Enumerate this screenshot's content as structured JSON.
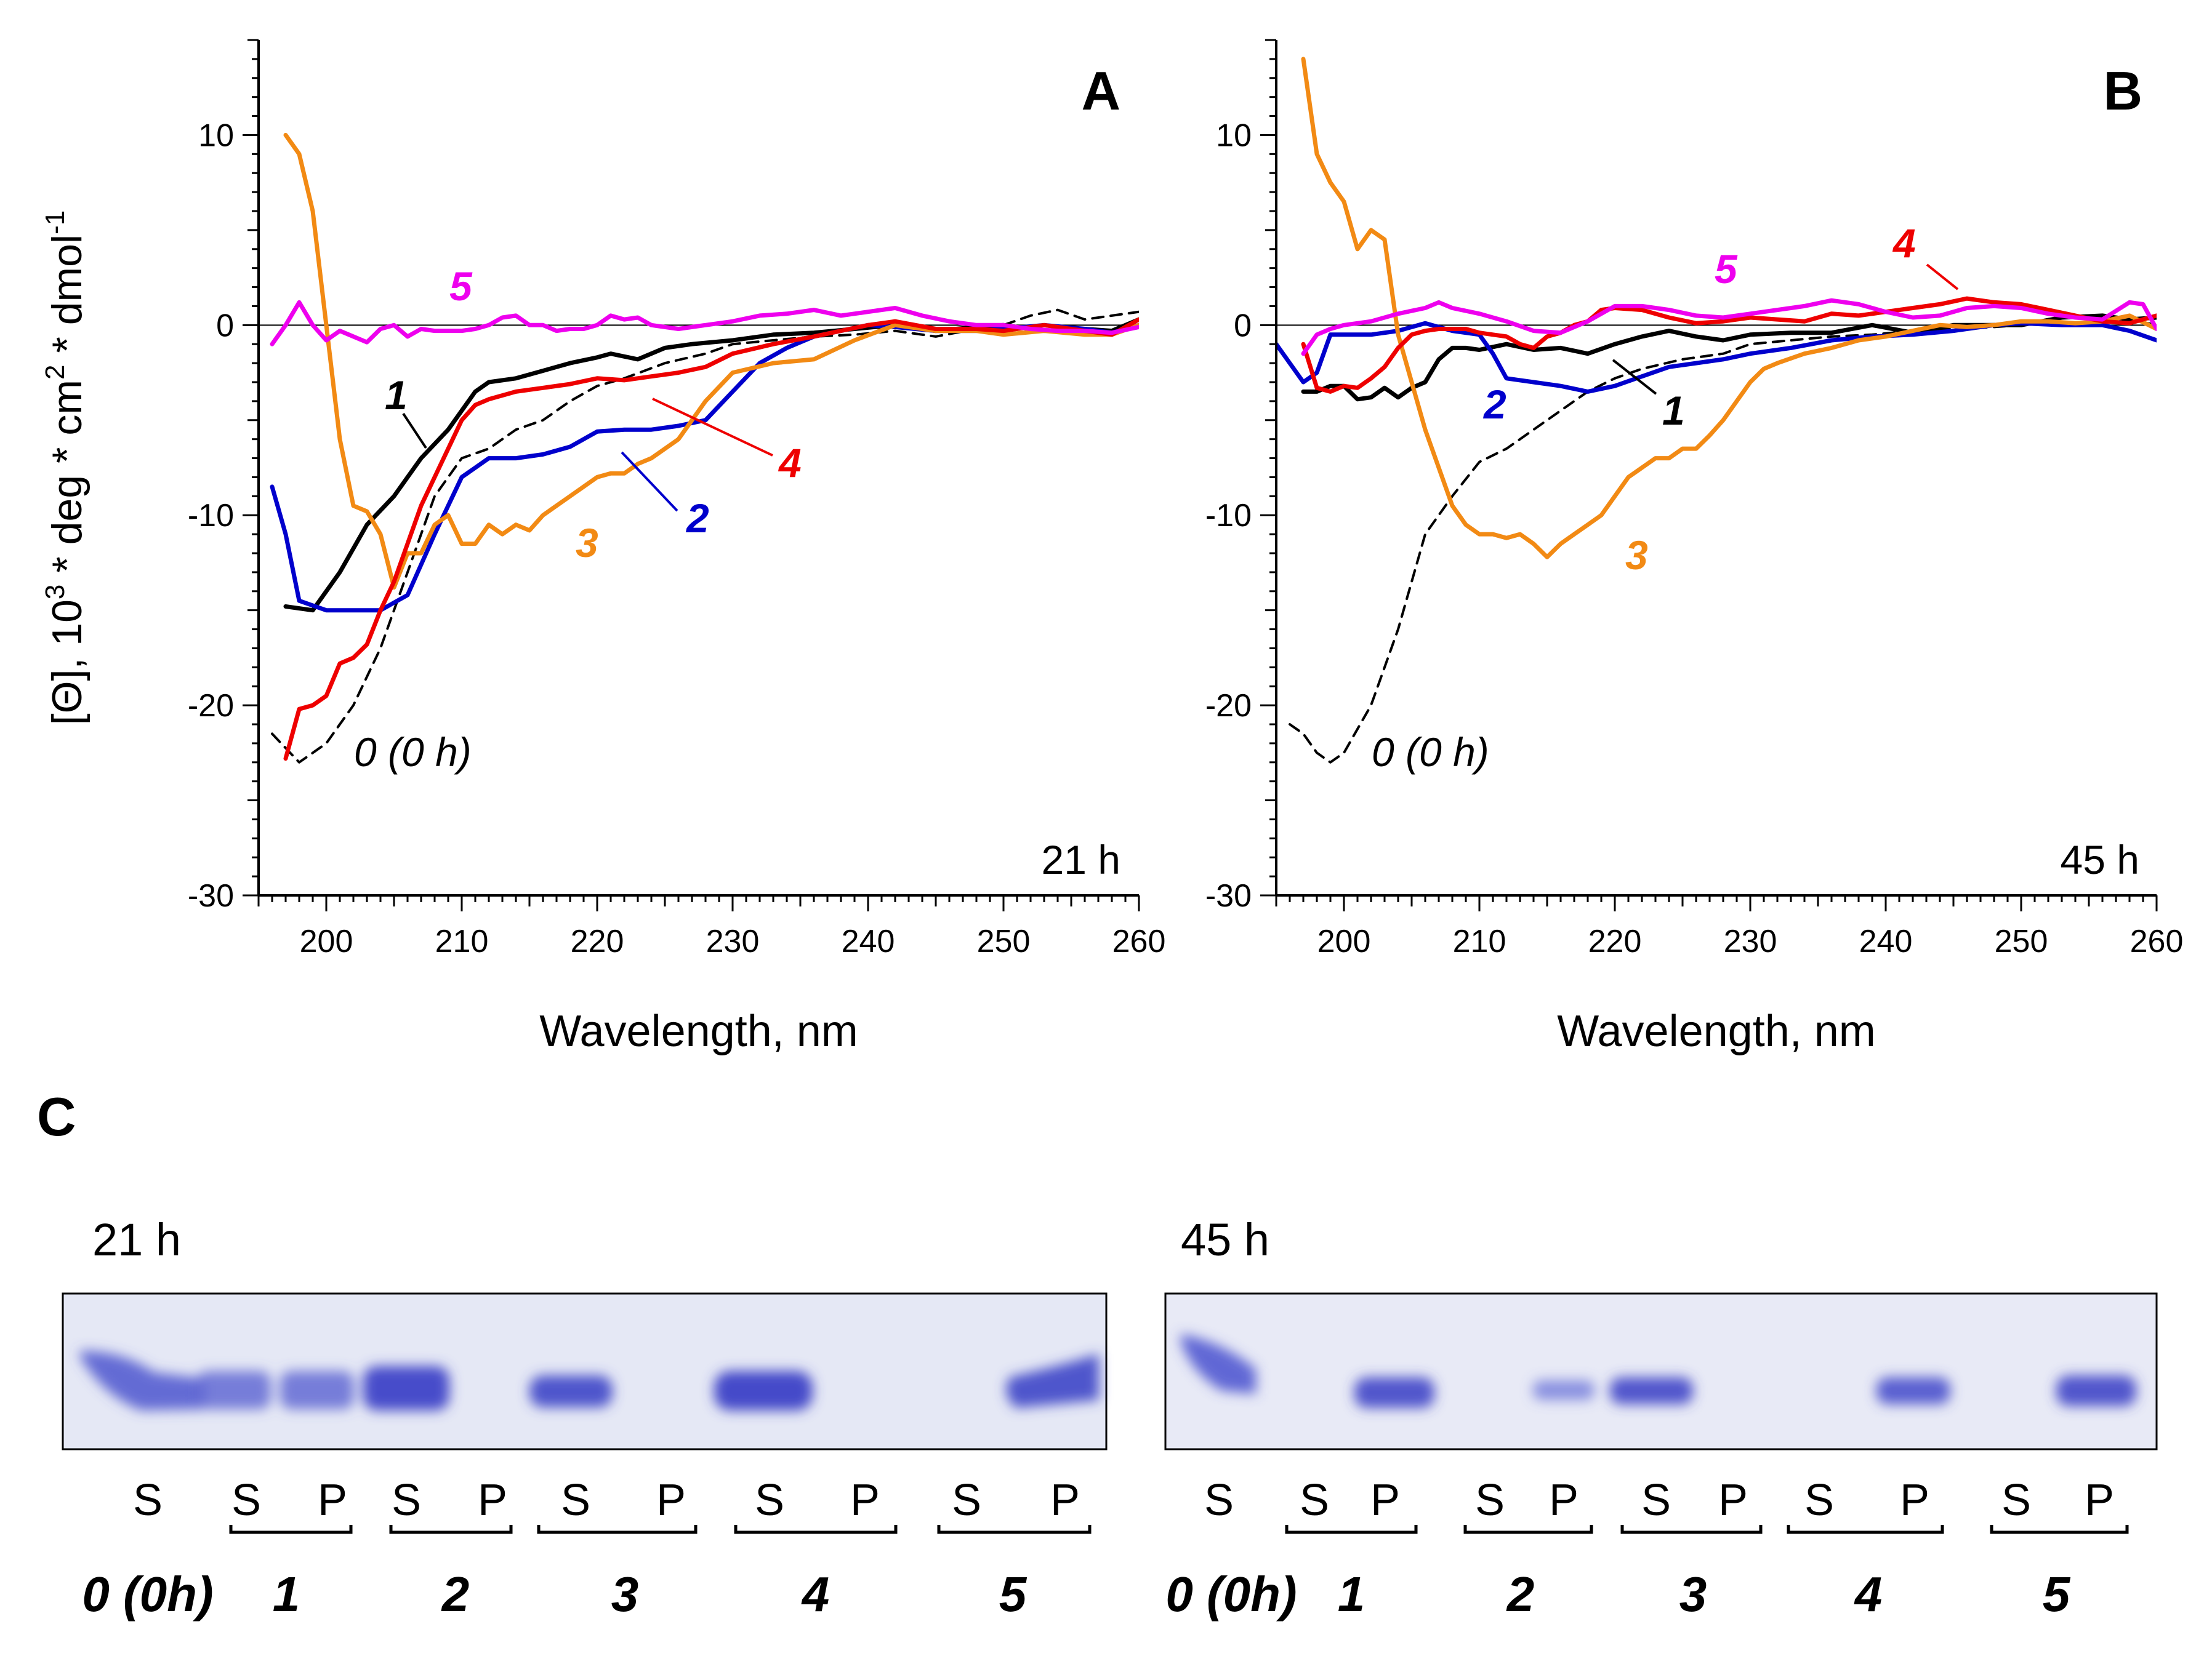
{
  "chart_data": [
    {
      "type": "line",
      "panel_letter": "A",
      "time_label": "21 h",
      "xlabel": "Wavelength, nm",
      "ylabel_parts": [
        "[",
        "Θ",
        "], 10",
        "3",
        " * deg * cm",
        "2",
        " * dmol",
        "-1"
      ],
      "xlim": [
        195,
        260
      ],
      "ylim": [
        -30,
        15
      ],
      "xticks": [
        "200",
        "210",
        "220",
        "230",
        "240",
        "250",
        "260"
      ],
      "yticks": [
        "10",
        "0",
        "-10",
        "-20",
        "-30"
      ],
      "series": [
        {
          "name": "0 (0 h)",
          "color": "#000000",
          "dashed": true,
          "x": [
            196,
            198,
            200,
            202,
            204,
            206,
            208,
            210,
            212,
            214,
            216,
            218,
            220,
            222,
            225,
            228,
            230,
            233,
            236,
            239,
            242,
            245,
            248,
            250,
            252,
            254,
            256,
            258,
            260
          ],
          "y": [
            -21.5,
            -23,
            -22,
            -20,
            -17,
            -13,
            -9,
            -7,
            -6.5,
            -5.5,
            -5,
            -4,
            -3.2,
            -2.8,
            -2,
            -1.5,
            -1,
            -0.8,
            -0.6,
            -0.5,
            -0.3,
            -0.6,
            -0.2,
            0,
            0.5,
            0.8,
            0.3,
            0.5,
            0.7
          ]
        },
        {
          "name": "1",
          "label": "1",
          "color": "#000000",
          "x": [
            197,
            199,
            201,
            203,
            205,
            207,
            209,
            211,
            212,
            214,
            216,
            218,
            220,
            221,
            223,
            225,
            227,
            230,
            233,
            236,
            239,
            242,
            245,
            248,
            250,
            253,
            256,
            258,
            260
          ],
          "y": [
            -14.8,
            -15,
            -13,
            -10.5,
            -9,
            -7,
            -5.5,
            -3.5,
            -3,
            -2.8,
            -2.4,
            -2,
            -1.7,
            -1.5,
            -1.8,
            -1.2,
            -1,
            -0.8,
            -0.5,
            -0.4,
            -0.2,
            0,
            -0.3,
            -0.1,
            0,
            -0.3,
            -0.2,
            -0.3,
            0.3
          ]
        },
        {
          "name": "2",
          "label": "2",
          "color": "#0000CC",
          "x": [
            196,
            197,
            198,
            200,
            202,
            204,
            206,
            208,
            210,
            212,
            214,
            216,
            218,
            220,
            222,
            224,
            226,
            228,
            230,
            232,
            234,
            236,
            238,
            240,
            242,
            245,
            248,
            250,
            253,
            256,
            258,
            260
          ],
          "y": [
            -8.5,
            -11,
            -14.5,
            -15,
            -15,
            -15,
            -14.2,
            -11,
            -8,
            -7,
            -7,
            -6.8,
            -6.4,
            -5.6,
            -5.5,
            -5.5,
            -5.3,
            -5,
            -3.5,
            -2,
            -1.2,
            -0.6,
            -0.3,
            0,
            -0.1,
            -0.3,
            -0.3,
            -0.2,
            0,
            -0.2,
            -0.4,
            0
          ]
        },
        {
          "name": "3",
          "label": "3",
          "color": "#F28A14",
          "x": [
            197,
            198,
            199,
            200,
            201,
            202,
            203,
            204,
            205,
            206,
            207,
            208,
            209,
            210,
            211,
            212,
            213,
            214,
            215,
            216,
            217,
            218,
            219,
            220,
            221,
            222,
            223,
            224,
            226,
            228,
            230,
            233,
            236,
            239,
            242,
            245,
            248,
            250,
            253,
            256,
            258,
            260
          ],
          "y": [
            10,
            9,
            6,
            0,
            -6,
            -9.5,
            -9.8,
            -11,
            -13.8,
            -12,
            -12,
            -10.5,
            -10,
            -11.5,
            -11.5,
            -10.5,
            -11,
            -10.5,
            -10.8,
            -10,
            -9.5,
            -9,
            -8.5,
            -8,
            -7.8,
            -7.8,
            -7.3,
            -7,
            -6,
            -4,
            -2.5,
            -2,
            -1.8,
            -0.8,
            0,
            -0.3,
            -0.3,
            -0.5,
            -0.3,
            -0.5,
            -0.5,
            0
          ]
        },
        {
          "name": "4",
          "label": "4",
          "color": "#EE0000",
          "x": [
            197,
            198,
            199,
            200,
            201,
            202,
            203,
            204,
            205,
            206,
            207,
            208,
            209,
            210,
            211,
            212,
            214,
            216,
            218,
            220,
            222,
            224,
            226,
            228,
            230,
            233,
            236,
            238,
            240,
            242,
            245,
            248,
            250,
            253,
            256,
            258,
            260
          ],
          "y": [
            -22.8,
            -20.2,
            -20,
            -19.5,
            -17.8,
            -17.5,
            -16.8,
            -15,
            -13.5,
            -11.5,
            -9.5,
            -8,
            -6.5,
            -5,
            -4.2,
            -3.9,
            -3.5,
            -3.3,
            -3.1,
            -2.8,
            -2.9,
            -2.7,
            -2.5,
            -2.2,
            -1.5,
            -1,
            -0.6,
            -0.3,
            0,
            0.2,
            -0.2,
            -0.2,
            -0.3,
            0,
            -0.3,
            -0.5,
            0.3
          ]
        },
        {
          "name": "5",
          "label": "5",
          "color": "#EE00EE",
          "x": [
            196,
            197,
            198,
            199,
            200,
            201,
            202,
            203,
            204,
            205,
            206,
            207,
            208,
            209,
            210,
            211,
            212,
            213,
            214,
            215,
            216,
            217,
            218,
            219,
            220,
            221,
            222,
            223,
            224,
            226,
            228,
            230,
            232,
            234,
            236,
            238,
            240,
            242,
            244,
            246,
            248,
            250,
            252,
            254,
            256,
            258,
            260
          ],
          "y": [
            -1,
            0,
            1.2,
            0,
            -0.8,
            -0.3,
            -0.6,
            -0.9,
            -0.2,
            0,
            -0.6,
            -0.2,
            -0.3,
            -0.3,
            -0.3,
            -0.2,
            0,
            0.4,
            0.5,
            0,
            0,
            -0.3,
            -0.2,
            -0.2,
            0,
            0.5,
            0.3,
            0.4,
            0,
            -0.2,
            0,
            0.2,
            0.5,
            0.6,
            0.8,
            0.5,
            0.7,
            0.9,
            0.5,
            0.2,
            0,
            0,
            -0.2,
            -0.3,
            -0.3,
            -0.4,
            -0.1
          ]
        }
      ]
    },
    {
      "type": "line",
      "panel_letter": "B",
      "time_label": "45 h",
      "xlabel": "Wavelength, nm",
      "xlim": [
        195,
        260
      ],
      "ylim": [
        -30,
        15
      ],
      "xticks": [
        "200",
        "210",
        "220",
        "230",
        "240",
        "250",
        "260"
      ],
      "yticks": [
        "10",
        "0",
        "-10",
        "-20",
        "-30"
      ],
      "series": [
        {
          "name": "0 (0 h)",
          "color": "#000000",
          "dashed": true,
          "x": [
            196,
            197,
            198,
            199,
            200,
            202,
            204,
            206,
            208,
            210,
            212,
            214,
            216,
            218,
            220,
            222,
            225,
            228,
            230,
            233,
            236,
            239,
            242,
            245,
            248,
            250,
            252,
            254,
            256,
            258,
            260
          ],
          "y": [
            -21,
            -21.5,
            -22.5,
            -23,
            -22.5,
            -20,
            -16,
            -11,
            -9,
            -7.2,
            -6.5,
            -5.5,
            -4.5,
            -3.5,
            -2.8,
            -2.3,
            -1.8,
            -1.5,
            -1,
            -0.8,
            -0.6,
            -0.5,
            -0.3,
            -0.2,
            -0.1,
            0,
            0.3,
            0.5,
            0.5,
            0.3,
            0
          ]
        },
        {
          "name": "1",
          "label": "1",
          "color": "#000000",
          "x": [
            197,
            198,
            199,
            200,
            201,
            202,
            203,
            204,
            205,
            206,
            207,
            208,
            209,
            210,
            212,
            214,
            216,
            218,
            220,
            222,
            224,
            226,
            228,
            230,
            233,
            236,
            239,
            242,
            245,
            248,
            250,
            253,
            256,
            258,
            260
          ],
          "y": [
            -3.5,
            -3.5,
            -3.2,
            -3.2,
            -3.9,
            -3.8,
            -3.3,
            -3.8,
            -3.3,
            -3,
            -1.8,
            -1.2,
            -1.2,
            -1.3,
            -1,
            -1.3,
            -1.2,
            -1.5,
            -1,
            -0.6,
            -0.3,
            -0.6,
            -0.8,
            -0.5,
            -0.4,
            -0.4,
            0,
            -0.4,
            0,
            0,
            0,
            0.4,
            0.5,
            0.3,
            0.4
          ]
        },
        {
          "name": "2",
          "label": "2",
          "color": "#0000CC",
          "x": [
            195,
            196,
            197,
            198,
            199,
            200,
            202,
            204,
            206,
            208,
            210,
            211,
            212,
            214,
            216,
            218,
            220,
            222,
            224,
            226,
            228,
            230,
            233,
            236,
            239,
            242,
            245,
            248,
            250,
            253,
            256,
            258,
            260
          ],
          "y": [
            -1,
            -2,
            -3,
            -2.5,
            -0.5,
            -0.5,
            -0.5,
            -0.3,
            0.1,
            -0.3,
            -0.5,
            -1.5,
            -2.8,
            -3,
            -3.2,
            -3.5,
            -3.2,
            -2.7,
            -2.2,
            -2,
            -1.8,
            -1.5,
            -1.2,
            -0.8,
            -0.6,
            -0.5,
            -0.3,
            0,
            0.1,
            0,
            0,
            -0.3,
            -0.8
          ]
        },
        {
          "name": "3",
          "label": "3",
          "color": "#F28A14",
          "x": [
            197,
            198,
            199,
            200,
            201,
            202,
            203,
            204,
            205,
            206,
            207,
            208,
            209,
            210,
            211,
            212,
            213,
            214,
            215,
            216,
            217,
            218,
            219,
            220,
            221,
            222,
            223,
            224,
            225,
            226,
            227,
            228,
            229,
            230,
            231,
            232,
            234,
            236,
            238,
            240,
            242,
            244,
            246,
            248,
            250,
            252,
            254,
            256,
            258,
            260
          ],
          "y": [
            14,
            9,
            7.5,
            6.5,
            4,
            5,
            4.5,
            -0.5,
            -3,
            -5.5,
            -7.5,
            -9.5,
            -10.5,
            -11,
            -11,
            -11.2,
            -11,
            -11.5,
            -12.2,
            -11.5,
            -11,
            -10.5,
            -10,
            -9,
            -8,
            -7.5,
            -7,
            -7,
            -6.5,
            -6.5,
            -5.8,
            -5,
            -4,
            -3,
            -2.3,
            -2,
            -1.5,
            -1.2,
            -0.8,
            -0.6,
            -0.3,
            0,
            -0.1,
            0,
            0.2,
            0.2,
            0.1,
            0.2,
            0.5,
            -0.2
          ]
        },
        {
          "name": "4",
          "label": "4",
          "color": "#EE0000",
          "x": [
            197,
            198,
            199,
            200,
            201,
            202,
            203,
            204,
            205,
            206,
            207,
            208,
            209,
            210,
            211,
            212,
            213,
            214,
            215,
            216,
            217,
            218,
            219,
            220,
            222,
            224,
            226,
            228,
            230,
            232,
            234,
            236,
            238,
            240,
            242,
            244,
            246,
            248,
            250,
            252,
            254,
            256,
            258,
            260
          ],
          "y": [
            -1,
            -3.3,
            -3.5,
            -3.2,
            -3.3,
            -2.8,
            -2.2,
            -1.2,
            -0.5,
            -0.3,
            -0.2,
            -0.2,
            -0.2,
            -0.4,
            -0.5,
            -0.6,
            -1,
            -1.2,
            -0.6,
            -0.4,
            0,
            0.2,
            0.8,
            0.9,
            0.8,
            0.4,
            0.1,
            0.2,
            0.4,
            0.3,
            0.2,
            0.6,
            0.5,
            0.7,
            0.9,
            1.1,
            1.4,
            1.2,
            1.1,
            0.8,
            0.5,
            0.2,
            0.1,
            0.5
          ]
        },
        {
          "name": "5",
          "label": "5",
          "color": "#EE00EE",
          "x": [
            197,
            198,
            199,
            200,
            202,
            204,
            206,
            207,
            208,
            210,
            212,
            214,
            216,
            218,
            220,
            222,
            224,
            226,
            228,
            230,
            232,
            234,
            236,
            238,
            240,
            242,
            244,
            246,
            248,
            250,
            252,
            254,
            256,
            258,
            259,
            260
          ],
          "y": [
            -1.5,
            -0.5,
            -0.2,
            0,
            0.2,
            0.6,
            0.9,
            1.2,
            0.9,
            0.6,
            0.2,
            -0.3,
            -0.4,
            0.2,
            1,
            1,
            0.8,
            0.5,
            0.4,
            0.6,
            0.8,
            1,
            1.3,
            1.1,
            0.7,
            0.4,
            0.5,
            0.9,
            1,
            0.9,
            0.6,
            0.4,
            0.3,
            1.2,
            1.1,
            -0.2
          ]
        }
      ]
    }
  ],
  "gel": {
    "letter": "C",
    "panels": [
      {
        "time": "21 h",
        "lane_letters": [
          "S",
          "S",
          "P",
          "S",
          "P",
          "S",
          "P",
          "S",
          "P",
          "S",
          "P"
        ],
        "group_labels": [
          "0 (0h)",
          "1",
          "2",
          "3",
          "4",
          "5"
        ]
      },
      {
        "time": "45 h",
        "lane_letters": [
          "S",
          "S",
          "P",
          "S",
          "P",
          "S",
          "P",
          "S",
          "P",
          "S",
          "P"
        ],
        "group_labels": [
          "0 (0h)",
          "1",
          "2",
          "3",
          "4",
          "5"
        ]
      }
    ]
  }
}
